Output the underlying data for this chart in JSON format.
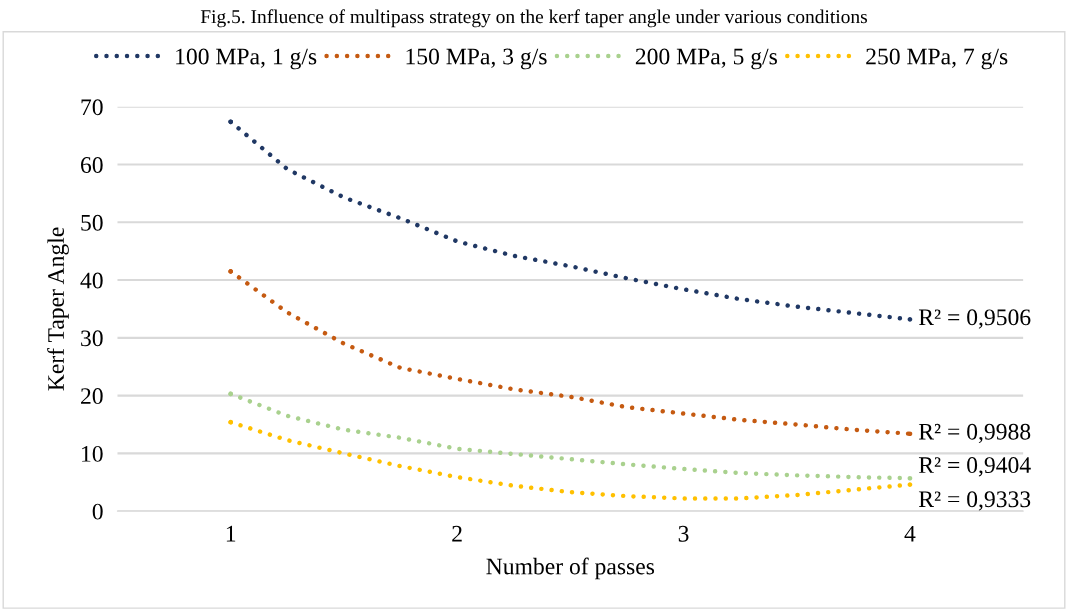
{
  "chart_data": {
    "type": "line",
    "title": "Fig.5. Influence of multipass strategy on the kerf taper angle under various conditions",
    "xlabel": "Number of passes",
    "ylabel": "Kerf Taper Angle",
    "x": [
      1,
      1.25,
      1.5,
      1.75,
      2,
      2.25,
      2.5,
      2.75,
      3,
      3.25,
      3.5,
      3.75,
      4
    ],
    "series": [
      {
        "name": "100 MPa, 1 g/s",
        "color": "#203864",
        "values": [
          67.4,
          59.2,
          54.3,
          50.7,
          46.7,
          44.2,
          42.4,
          40.3,
          38.4,
          36.7,
          35.4,
          34.3,
          33.2
        ]
      },
      {
        "name": "150 MPa, 3 g/s",
        "color": "#c55a11",
        "values": [
          41.5,
          34.4,
          29.0,
          24.8,
          22.9,
          21.1,
          19.8,
          18.0,
          16.9,
          15.8,
          15.0,
          14.1,
          13.4
        ]
      },
      {
        "name": "200 MPa, 5 g/s",
        "color": "#a9d18e",
        "values": [
          20.3,
          16.5,
          14.1,
          12.7,
          10.8,
          9.9,
          9.0,
          8.1,
          7.3,
          6.6,
          6.2,
          5.9,
          5.7
        ]
      },
      {
        "name": "250 MPa, 7 g/s",
        "color": "#ffc000",
        "values": [
          15.4,
          12.3,
          10.0,
          7.8,
          5.9,
          4.4,
          3.3,
          2.6,
          2.2,
          2.2,
          2.8,
          3.7,
          4.6
        ]
      }
    ],
    "annotations": [
      "R² = 0,9506",
      "R² = 0,9988",
      "R² = 0,9404",
      "R² = 0,9333"
    ],
    "xlim": [
      0.5,
      4.5
    ],
    "xticks": [
      1,
      2,
      3,
      4
    ],
    "ylim": [
      0,
      70
    ],
    "yticks": [
      0,
      10,
      20,
      30,
      40,
      50,
      60,
      70
    ],
    "grid": "y",
    "legend": "top",
    "line_style": "dotted",
    "marker": "none"
  }
}
